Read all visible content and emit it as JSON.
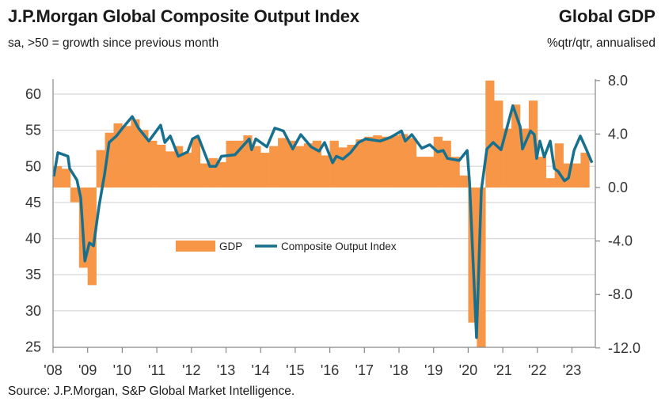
{
  "header": {
    "title": "J.P.Morgan Global Composite Output Index",
    "subtitle": "sa, >50 = growth since previous month",
    "right_title": "Global GDP",
    "right_subtitle": "%qtr/qtr, annualised"
  },
  "footer": {
    "source": "Source: J.P.Morgan, S&P Global Market Intelligence."
  },
  "chart_data": {
    "type": "bar+line",
    "title": "J.P.Morgan Global Composite Output Index",
    "colors": {
      "gdp": "#F79646",
      "composite": "#17708E"
    },
    "legend": {
      "position": "center",
      "entries": [
        "GDP",
        "Composite Output Index"
      ]
    },
    "grid": true,
    "x_tick_labels": [
      "'08",
      "'09",
      "'10",
      "'11",
      "'12",
      "'13",
      "'14",
      "'15",
      "'16",
      "'17",
      "'18",
      "'19",
      "'20",
      "'21",
      "'22",
      "'23"
    ],
    "left_axis": {
      "ylim": [
        25,
        62
      ],
      "ticks": [
        "60",
        "55",
        "50",
        "45",
        "40",
        "35",
        "30",
        "25"
      ]
    },
    "right_axis": {
      "ylim": [
        -12,
        8
      ],
      "ticks": [
        "8.0",
        "4.0",
        "0.0",
        "-4.0",
        "-8.0",
        "-12.0"
      ]
    },
    "series": [
      {
        "name": "GDP",
        "type": "bar",
        "axis": "right",
        "frequency": "quarterly",
        "start": "2008Q1",
        "values": [
          1.6,
          1.4,
          -1.1,
          -6.0,
          -7.3,
          2.8,
          4.1,
          4.8,
          4.6,
          5.1,
          4.3,
          3.5,
          3.2,
          2.7,
          3.1,
          2.6,
          3.7,
          1.8,
          2.2,
          1.9,
          3.5,
          3.5,
          3.9,
          3.1,
          2.6,
          3.1,
          3.7,
          3.5,
          3.1,
          3.3,
          3.5,
          2.4,
          3.5,
          3.0,
          3.2,
          3.6,
          3.8,
          3.9,
          3.8,
          3.9,
          4.0,
          3.7,
          2.3,
          2.3,
          3.8,
          3.5,
          2.3,
          0.9,
          -10.1,
          -12.0,
          8.0,
          6.5,
          4.4,
          6.2,
          4.4,
          6.5,
          2.3,
          0.7,
          3.3,
          1.8,
          1.8,
          2.6
        ]
      },
      {
        "name": "Composite Output Index",
        "type": "line",
        "axis": "left",
        "points": [
          [
            2008.02,
            48.6
          ],
          [
            2008.14,
            51.9
          ],
          [
            2008.43,
            51.4
          ],
          [
            2008.48,
            49.7
          ],
          [
            2008.69,
            48.1
          ],
          [
            2008.8,
            45.6
          ],
          [
            2008.92,
            36.9
          ],
          [
            2009.05,
            39.4
          ],
          [
            2009.17,
            39.0
          ],
          [
            2009.33,
            44.5
          ],
          [
            2009.49,
            48.9
          ],
          [
            2009.62,
            53.3
          ],
          [
            2009.83,
            54.2
          ],
          [
            2010.01,
            55.3
          ],
          [
            2010.29,
            56.9
          ],
          [
            2010.47,
            55.3
          ],
          [
            2010.77,
            53.5
          ],
          [
            2011.11,
            55.7
          ],
          [
            2011.23,
            53.3
          ],
          [
            2011.39,
            54.2
          ],
          [
            2011.62,
            51.4
          ],
          [
            2011.89,
            52.0
          ],
          [
            2012.03,
            53.8
          ],
          [
            2012.19,
            54.2
          ],
          [
            2012.53,
            50.0
          ],
          [
            2012.71,
            50.0
          ],
          [
            2012.87,
            51.4
          ],
          [
            2013.26,
            51.6
          ],
          [
            2013.67,
            53.8
          ],
          [
            2013.74,
            52.3
          ],
          [
            2013.86,
            53.8
          ],
          [
            2014.18,
            52.7
          ],
          [
            2014.41,
            55.3
          ],
          [
            2014.66,
            54.9
          ],
          [
            2014.93,
            52.4
          ],
          [
            2015.16,
            54.4
          ],
          [
            2015.46,
            52.7
          ],
          [
            2015.69,
            52.1
          ],
          [
            2015.85,
            53.3
          ],
          [
            2016.08,
            50.5
          ],
          [
            2016.19,
            51.4
          ],
          [
            2016.38,
            51.0
          ],
          [
            2016.6,
            51.9
          ],
          [
            2016.83,
            53.3
          ],
          [
            2017.04,
            53.8
          ],
          [
            2017.45,
            53.5
          ],
          [
            2017.75,
            54.0
          ],
          [
            2018.07,
            54.9
          ],
          [
            2018.18,
            53.5
          ],
          [
            2018.37,
            54.4
          ],
          [
            2018.66,
            52.5
          ],
          [
            2018.89,
            53.0
          ],
          [
            2019.12,
            52.0
          ],
          [
            2019.28,
            52.2
          ],
          [
            2019.4,
            51.1
          ],
          [
            2019.74,
            50.8
          ],
          [
            2019.97,
            52.2
          ],
          [
            2020.04,
            47.8
          ],
          [
            2020.24,
            26.3
          ],
          [
            2020.38,
            46.7
          ],
          [
            2020.54,
            52.4
          ],
          [
            2020.72,
            53.3
          ],
          [
            2020.95,
            52.3
          ],
          [
            2021.29,
            58.4
          ],
          [
            2021.5,
            55.5
          ],
          [
            2021.57,
            52.4
          ],
          [
            2021.8,
            54.9
          ],
          [
            2021.91,
            54.4
          ],
          [
            2021.98,
            51.1
          ],
          [
            2022.07,
            53.5
          ],
          [
            2022.2,
            51.3
          ],
          [
            2022.37,
            53.5
          ],
          [
            2022.49,
            49.7
          ],
          [
            2022.6,
            49.3
          ],
          [
            2022.78,
            48.0
          ],
          [
            2022.9,
            48.4
          ],
          [
            2023.06,
            52.2
          ],
          [
            2023.24,
            54.2
          ],
          [
            2023.4,
            52.5
          ],
          [
            2023.58,
            50.5
          ]
        ]
      }
    ]
  }
}
